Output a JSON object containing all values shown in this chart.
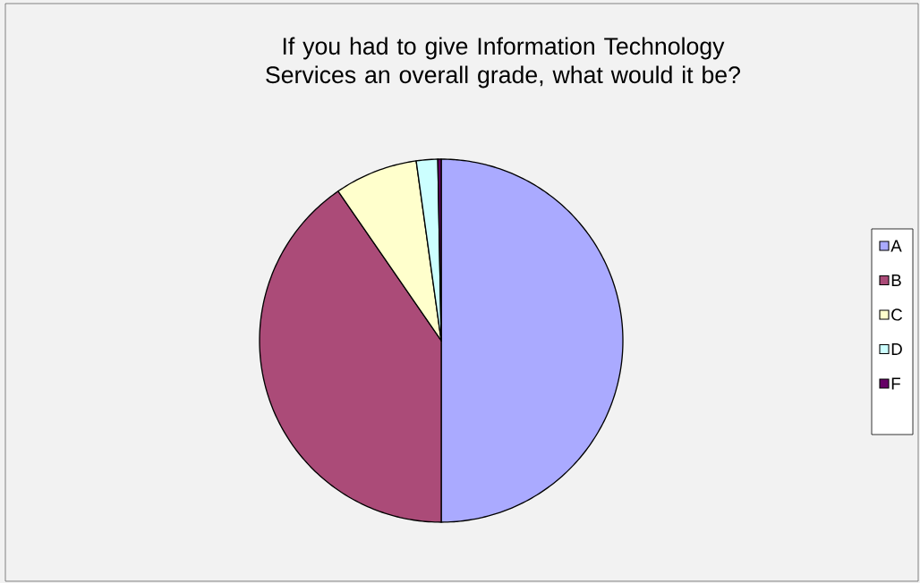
{
  "chart_data": {
    "type": "pie",
    "title": "If you had to give Information Technology Services an overall grade, what would it be?",
    "categories": [
      "A",
      "B",
      "C",
      "D",
      "F"
    ],
    "values": [
      50,
      40.4,
      7.4,
      1.9,
      0.3
    ],
    "colors": [
      "#aaaaff",
      "#ab4b78",
      "#ffffcc",
      "#ccffff",
      "#660066"
    ],
    "legend": "right"
  }
}
